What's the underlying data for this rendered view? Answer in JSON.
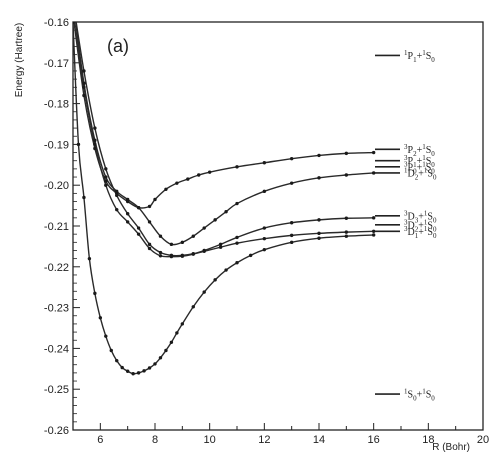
{
  "chart_data": {
    "type": "line",
    "panel_label": "(a)",
    "xlabel": "R (Bohr)",
    "ylabel": "Energy (Hartree)",
    "xlim": [
      5,
      20
    ],
    "ylim": [
      -0.26,
      -0.16
    ],
    "x_ticks": [
      6,
      8,
      10,
      12,
      14,
      16,
      18,
      20
    ],
    "y_ticks": [
      -0.16,
      -0.17,
      -0.18,
      -0.19,
      -0.2,
      -0.21,
      -0.22,
      -0.23,
      -0.24,
      -0.25,
      -0.26
    ],
    "grid": false,
    "series": [
      {
        "x": [
          5.0,
          5.4,
          5.8,
          6.2,
          6.6,
          7.0,
          7.4,
          7.8,
          8.0,
          8.4,
          8.8,
          9.2,
          9.6,
          10,
          11,
          12,
          13,
          14,
          15,
          16
        ],
        "y": [
          -0.158,
          -0.178,
          -0.191,
          -0.199,
          -0.202,
          -0.204,
          -0.2055,
          -0.2052,
          -0.2035,
          -0.201,
          -0.1995,
          -0.1985,
          -0.1975,
          -0.1968,
          -0.1955,
          -0.1945,
          -0.1935,
          -0.1927,
          -0.1922,
          -0.192
        ]
      },
      {
        "x": [
          5.0,
          5.4,
          5.8,
          6.2,
          6.6,
          7.0,
          7.4,
          7.8,
          8.2,
          8.6,
          9.0,
          9.4,
          9.8,
          10.2,
          10.6,
          11,
          12,
          13,
          14,
          15,
          16
        ],
        "y": [
          -0.155,
          -0.175,
          -0.189,
          -0.198,
          -0.2015,
          -0.2035,
          -0.2055,
          -0.209,
          -0.2125,
          -0.2145,
          -0.214,
          -0.2125,
          -0.2105,
          -0.2085,
          -0.2065,
          -0.2045,
          -0.2015,
          -0.1995,
          -0.1982,
          -0.1975,
          -0.197
        ]
      },
      {
        "x": [
          5.0,
          5.4,
          5.8,
          6.2,
          6.6,
          7.0,
          7.4,
          7.8,
          8.2,
          8.6,
          9.0,
          9.4,
          9.8,
          10.4,
          11,
          12,
          13,
          14,
          15,
          16
        ],
        "y": [
          -0.155,
          -0.172,
          -0.186,
          -0.196,
          -0.2025,
          -0.207,
          -0.2105,
          -0.2145,
          -0.2165,
          -0.2172,
          -0.2172,
          -0.2168,
          -0.216,
          -0.2145,
          -0.2128,
          -0.2105,
          -0.2092,
          -0.2085,
          -0.2081,
          -0.208
        ]
      },
      {
        "x": [
          5.0,
          5.4,
          5.8,
          6.2,
          6.6,
          7.0,
          7.4,
          7.8,
          8.2,
          8.6,
          9.0,
          9.4,
          9.8,
          10.4,
          11,
          12,
          13,
          14,
          15,
          16
        ],
        "y": [
          -0.158,
          -0.176,
          -0.19,
          -0.2,
          -0.206,
          -0.209,
          -0.212,
          -0.2155,
          -0.2173,
          -0.2175,
          -0.2174,
          -0.2169,
          -0.2162,
          -0.2152,
          -0.2142,
          -0.2131,
          -0.2123,
          -0.2118,
          -0.2115,
          -0.2113
        ]
      },
      {
        "x": [
          5.0,
          5.2,
          5.4,
          5.6,
          5.8,
          6.0,
          6.2,
          6.4,
          6.6,
          6.8,
          7.0,
          7.2,
          7.4,
          7.6,
          7.8,
          8.0,
          8.2,
          8.4,
          8.6,
          8.8,
          9.0,
          9.4,
          9.8,
          10.2,
          10.6,
          11,
          11.5,
          12,
          13,
          14,
          15,
          16
        ],
        "y": [
          -0.16,
          -0.19,
          -0.203,
          -0.218,
          -0.2265,
          -0.2325,
          -0.237,
          -0.2405,
          -0.243,
          -0.2447,
          -0.2456,
          -0.2462,
          -0.246,
          -0.2455,
          -0.2448,
          -0.2438,
          -0.2423,
          -0.2405,
          -0.2385,
          -0.2362,
          -0.234,
          -0.2298,
          -0.2262,
          -0.2232,
          -0.2208,
          -0.219,
          -0.2172,
          -0.2158,
          -0.214,
          -0.213,
          -0.2125,
          -0.2122
        ]
      }
    ],
    "asymptotes": [
      {
        "y": -0.1682,
        "label": [
          "1",
          "P",
          "1",
          "+",
          "1",
          "S",
          "0"
        ]
      },
      {
        "y": -0.1912,
        "label": [
          "3",
          "P",
          "2",
          "+",
          "1",
          "S",
          "0"
        ]
      },
      {
        "y": -0.194,
        "label": [
          "3",
          "P",
          "1",
          "+",
          "1",
          "S",
          "0"
        ]
      },
      {
        "y": -0.1955,
        "label": [
          "3",
          "P",
          "0",
          "+",
          "1",
          "S",
          "0"
        ]
      },
      {
        "y": -0.197,
        "label": [
          "1",
          "D",
          "2",
          "+",
          "1",
          "S",
          "0"
        ]
      },
      {
        "y": -0.2075,
        "label": [
          "3",
          "D",
          "3",
          "+",
          "1",
          "S",
          "0"
        ]
      },
      {
        "y": -0.2097,
        "label": [
          "3",
          "D",
          "2",
          "+",
          "1",
          "S",
          "0"
        ]
      },
      {
        "y": -0.2113,
        "label": [
          "3",
          "D",
          "1",
          "+",
          "1",
          "S",
          "0"
        ]
      },
      {
        "y": -0.2512,
        "label": [
          "1",
          "S",
          "0",
          "+",
          "1",
          "S",
          "0"
        ]
      }
    ]
  }
}
